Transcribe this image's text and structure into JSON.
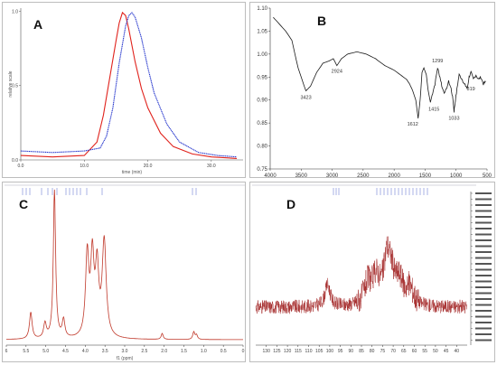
{
  "panels": {
    "a": {
      "letter": "A"
    },
    "b": {
      "letter": "B"
    },
    "c": {
      "letter": "C"
    },
    "d": {
      "letter": "D"
    }
  },
  "chart_data": [
    {
      "id": "A",
      "type": "line",
      "ylabel": "relative scale",
      "xlabel": "time (min)",
      "xlim": [
        0,
        35
      ],
      "ylim": [
        0,
        1.02
      ],
      "xticks": [
        "0.0",
        "10.0",
        "20.0",
        "30.0"
      ],
      "yticks": [
        "0.0",
        "0.5",
        "1.0"
      ],
      "series": [
        {
          "color": "#e0221c",
          "x": [
            0,
            5,
            10,
            12,
            13,
            14,
            15,
            15.5,
            16,
            16.5,
            17,
            18,
            19,
            20,
            22,
            24,
            27,
            30,
            34
          ],
          "y": [
            0.03,
            0.02,
            0.03,
            0.12,
            0.3,
            0.55,
            0.8,
            0.92,
            0.99,
            0.97,
            0.88,
            0.66,
            0.48,
            0.35,
            0.18,
            0.09,
            0.04,
            0.02,
            0.01
          ]
        },
        {
          "color": "#2233cc",
          "x": [
            0,
            5,
            10,
            12.5,
            13.5,
            14.5,
            15.5,
            16.5,
            17,
            17.5,
            18,
            19,
            20,
            21,
            23,
            25,
            28,
            31,
            34
          ],
          "y": [
            0.06,
            0.05,
            0.06,
            0.08,
            0.16,
            0.35,
            0.65,
            0.9,
            0.97,
            0.99,
            0.96,
            0.82,
            0.62,
            0.45,
            0.24,
            0.12,
            0.05,
            0.03,
            0.02
          ]
        }
      ]
    },
    {
      "id": "B",
      "type": "line",
      "xlim": [
        4000,
        500
      ],
      "ylim": [
        0.75,
        1.1
      ],
      "xticks": [
        "4000",
        "3500",
        "3000",
        "2500",
        "2000",
        "1500",
        "1000",
        "500"
      ],
      "yticks": [
        "1.10",
        "1.05",
        "1.00",
        "0.95",
        "0.90",
        "0.85",
        "0.80",
        "0.75"
      ],
      "series": [
        {
          "color": "#1a1a1a",
          "x": [
            3950,
            3850,
            3750,
            3650,
            3550,
            3450,
            3423,
            3350,
            3250,
            3150,
            3050,
            2980,
            2924,
            2850,
            2750,
            2600,
            2450,
            2300,
            2150,
            2000,
            1900,
            1800,
            1750,
            1700,
            1650,
            1612,
            1580,
            1550,
            1520,
            1480,
            1450,
            1415,
            1380,
            1340,
            1299,
            1260,
            1220,
            1180,
            1120,
            1080,
            1050,
            1033,
            1010,
            980,
            950,
            900,
            870,
            840,
            819,
            790,
            760,
            720,
            680,
            640,
            600,
            560,
            520
          ],
          "y": [
            1.08,
            1.065,
            1.05,
            1.03,
            0.97,
            0.93,
            0.92,
            0.93,
            0.96,
            0.98,
            0.985,
            0.99,
            0.975,
            0.99,
            1.0,
            1.005,
            1.0,
            0.99,
            0.975,
            0.965,
            0.955,
            0.945,
            0.935,
            0.92,
            0.9,
            0.86,
            0.9,
            0.96,
            0.97,
            0.955,
            0.92,
            0.895,
            0.915,
            0.935,
            0.97,
            0.95,
            0.925,
            0.915,
            0.94,
            0.925,
            0.9,
            0.875,
            0.9,
            0.93,
            0.955,
            0.945,
            0.935,
            0.93,
            0.925,
            0.95,
            0.96,
            0.945,
            0.955,
            0.945,
            0.95,
            0.935,
            0.94
          ]
        }
      ],
      "annotations": [
        {
          "label": "3423",
          "x": 3423,
          "y": 0.92
        },
        {
          "label": "2924",
          "x": 2924,
          "y": 0.975
        },
        {
          "label": "1612",
          "x": 1612,
          "y": 0.86
        },
        {
          "label": "1299",
          "x": 1299,
          "y": 0.97
        },
        {
          "label": "1415",
          "x": 1415,
          "y": 0.895
        },
        {
          "label": "1033",
          "x": 1033,
          "y": 0.875
        },
        {
          "label": "819",
          "x": 819,
          "y": 0.925
        }
      ]
    },
    {
      "id": "C",
      "type": "line",
      "xlabel": "f1 (ppm)",
      "xlim": [
        6,
        0
      ],
      "xticks": [
        "6",
        "5.5",
        "5.0",
        "4.5",
        "4.0",
        "3.5",
        "3.0",
        "2.5",
        "2.0",
        "1.5",
        "1.0",
        "0.5",
        "0"
      ],
      "series": [
        {
          "color": "#c0392b",
          "peaks": [
            {
              "ppm": 5.38,
              "height": 0.18,
              "width": 0.04
            },
            {
              "ppm": 5.02,
              "height": 0.1,
              "width": 0.04
            },
            {
              "ppm": 4.78,
              "height": 1.0,
              "width": 0.035
            },
            {
              "ppm": 4.55,
              "height": 0.12,
              "width": 0.04
            },
            {
              "ppm": 3.95,
              "height": 0.55,
              "width": 0.05
            },
            {
              "ppm": 3.82,
              "height": 0.52,
              "width": 0.05
            },
            {
              "ppm": 3.7,
              "height": 0.45,
              "width": 0.05
            },
            {
              "ppm": 3.52,
              "height": 0.65,
              "width": 0.06
            },
            {
              "ppm": 2.05,
              "height": 0.04,
              "width": 0.03
            },
            {
              "ppm": 1.25,
              "height": 0.05,
              "width": 0.03
            },
            {
              "ppm": 1.18,
              "height": 0.03,
              "width": 0.03
            }
          ]
        }
      ]
    },
    {
      "id": "D",
      "type": "line",
      "xlim": [
        135,
        35
      ],
      "xticks": [
        "130",
        "125",
        "120",
        "115",
        "110",
        "105",
        "100",
        "95",
        "90",
        "85",
        "80",
        "75",
        "70",
        "65",
        "60",
        "55",
        "50",
        "45",
        "40"
      ],
      "series": [
        {
          "color": "#a52a2a",
          "peaks": [
            {
              "ppm": 101,
              "height": 0.35,
              "width": 1.5
            },
            {
              "ppm": 82,
              "height": 0.3,
              "width": 2
            },
            {
              "ppm": 78,
              "height": 0.35,
              "width": 2
            },
            {
              "ppm": 73,
              "height": 0.55,
              "width": 1.5
            },
            {
              "ppm": 71,
              "height": 0.4,
              "width": 2
            },
            {
              "ppm": 67,
              "height": 0.3,
              "width": 2
            },
            {
              "ppm": 62,
              "height": 0.25,
              "width": 2
            }
          ]
        }
      ]
    }
  ]
}
